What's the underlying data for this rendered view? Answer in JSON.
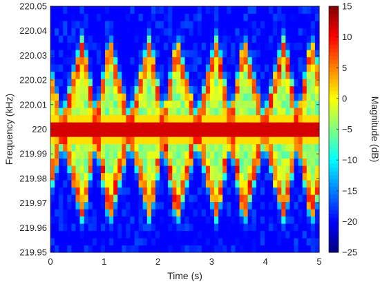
{
  "chart_data": {
    "type": "heatmap",
    "xlabel": "Time (s)",
    "ylabel": "Frequency (kHz)",
    "colorbar_label": "Magnitude (dB)",
    "colormap": "jet",
    "xlim": [
      0,
      5
    ],
    "ylim": [
      219.95,
      220.05
    ],
    "clim": [
      -25,
      15
    ],
    "x_ticks": [
      0,
      1,
      2,
      3,
      4,
      5
    ],
    "y_ticks": [
      219.95,
      219.96,
      219.97,
      219.98,
      219.99,
      220,
      220.01,
      220.02,
      220.03,
      220.04,
      220.05
    ],
    "colorbar_ticks": [
      -25,
      -20,
      -15,
      -10,
      -5,
      0,
      5,
      10,
      15
    ],
    "carrier": {
      "frequency_khz": 220.0,
      "magnitude_db": 14
    },
    "sweep_period_s": 1.25,
    "upper_peaks_s": [
      0.6,
      1.85,
      3.1,
      4.35
    ],
    "lower_peaks_s": [
      1.1,
      2.35,
      3.6,
      4.85
    ],
    "sweep_extent_khz": 0.035,
    "background_db": -21
  }
}
